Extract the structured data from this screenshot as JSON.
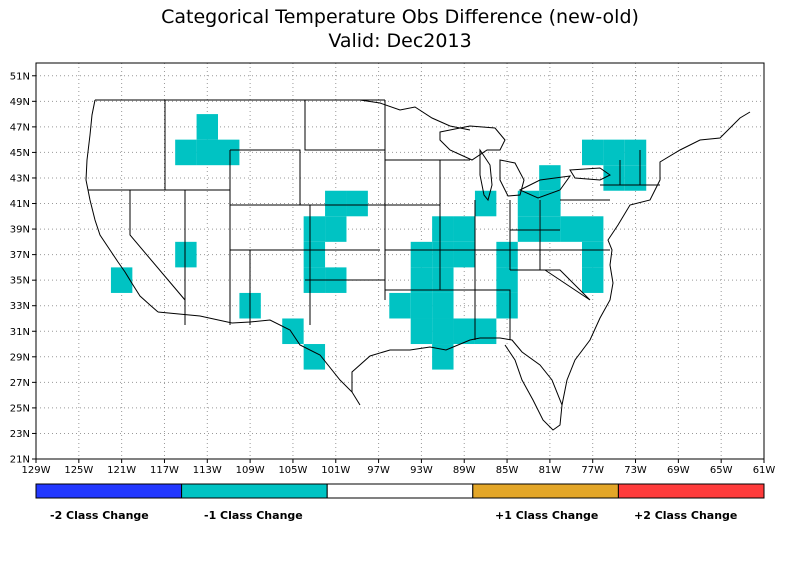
{
  "title": {
    "line1": "Categorical Temperature Obs Difference (new-old)",
    "line2": "Valid: Dec2013"
  },
  "map": {
    "lon_range": [
      -129,
      -61
    ],
    "lat_range": [
      21,
      52
    ],
    "lon_ticks": [
      "129W",
      "125W",
      "121W",
      "117W",
      "113W",
      "109W",
      "105W",
      "101W",
      "97W",
      "93W",
      "89W",
      "85W",
      "81W",
      "77W",
      "73W",
      "69W",
      "65W",
      "61W"
    ],
    "lat_ticks": [
      "21N",
      "23N",
      "25N",
      "27N",
      "29N",
      "31N",
      "33N",
      "35N",
      "37N",
      "39N",
      "41N",
      "43N",
      "45N",
      "47N",
      "49N",
      "51N"
    ],
    "grid": true,
    "cell_size_deg": 2,
    "minus1_cells": [
      [
        -113,
        47
      ],
      [
        -115,
        45
      ],
      [
        -113,
        45
      ],
      [
        -111,
        45
      ],
      [
        -121,
        35
      ],
      [
        -115,
        37
      ],
      [
        -109,
        33
      ],
      [
        -103,
        37
      ],
      [
        -103,
        35
      ],
      [
        -101,
        41
      ],
      [
        -101,
        39
      ],
      [
        -101,
        35
      ],
      [
        -103,
        39
      ],
      [
        -105,
        31
      ],
      [
        -103,
        29
      ],
      [
        -99,
        41
      ],
      [
        -93,
        37
      ],
      [
        -93,
        35
      ],
      [
        -93,
        33
      ],
      [
        -93,
        31
      ],
      [
        -95,
        33
      ],
      [
        -91,
        39
      ],
      [
        -91,
        37
      ],
      [
        -91,
        35
      ],
      [
        -91,
        33
      ],
      [
        -91,
        31
      ],
      [
        -91,
        29
      ],
      [
        -89,
        37
      ],
      [
        -89,
        39
      ],
      [
        -89,
        31
      ],
      [
        -87,
        41
      ],
      [
        -87,
        31
      ],
      [
        -85,
        37
      ],
      [
        -85,
        35
      ],
      [
        -85,
        33
      ],
      [
        -83,
        39
      ],
      [
        -81,
        39
      ],
      [
        -79,
        39
      ],
      [
        -77,
        39
      ],
      [
        -77,
        37
      ],
      [
        -77,
        35
      ],
      [
        -81,
        43
      ],
      [
        -83,
        41
      ],
      [
        -81,
        41
      ],
      [
        -77,
        45
      ],
      [
        -75,
        45
      ],
      [
        -75,
        43
      ],
      [
        -73,
        45
      ],
      [
        -73,
        43
      ]
    ]
  },
  "legend": {
    "colors": [
      "#2238ff",
      "#00c3c3",
      "#ffffff",
      "#e3a628",
      "#ff3b3b"
    ],
    "labels": [
      "-2 Class Change",
      "-1 Class Change",
      "+1 Class Change",
      "+2 Class Change"
    ]
  }
}
